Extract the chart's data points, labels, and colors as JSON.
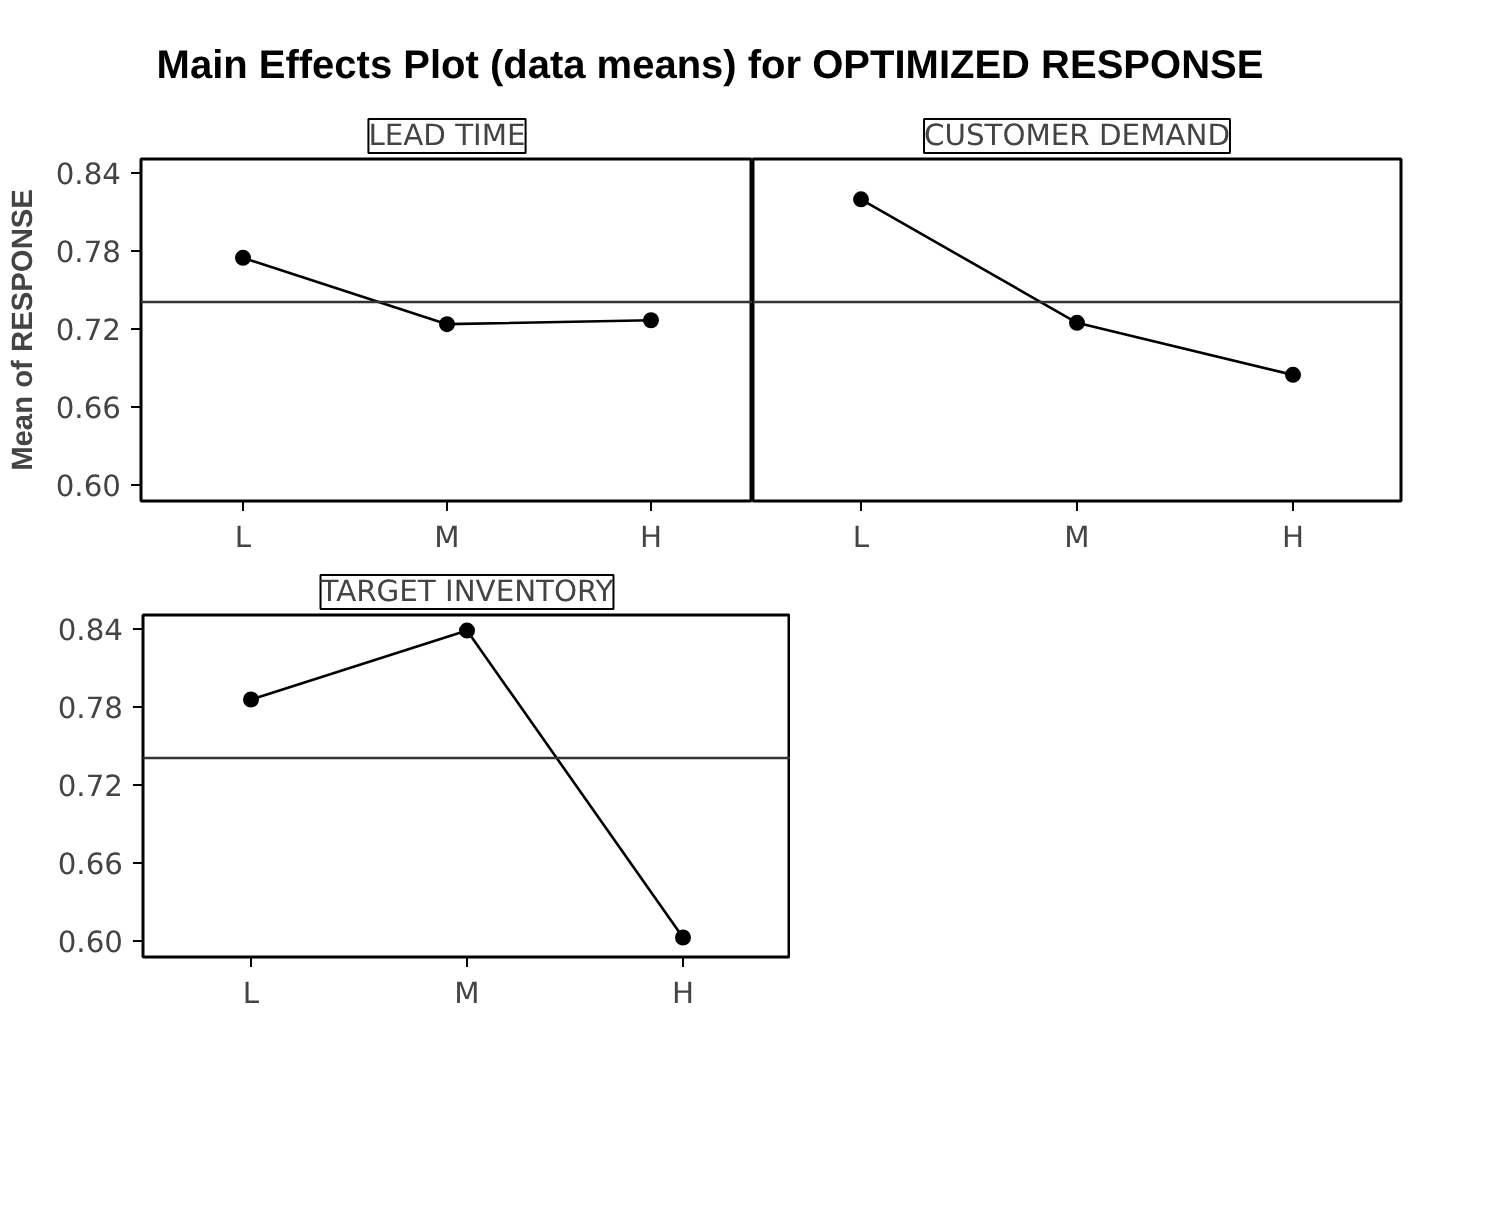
{
  "chart_data": [
    {
      "type": "line",
      "title": "Main Effects Plot (data means) for OPTIMIZED RESPONSE",
      "subtitle": "LEAD TIME",
      "ylabel": "Mean of RESPONSE",
      "categories": [
        "L",
        "M",
        "H"
      ],
      "values": [
        0.775,
        0.724,
        0.727
      ],
      "color": "#000000",
      "marker": "circle",
      "ylim": [
        0.588,
        0.851
      ],
      "yticks": [
        {
          "value": 0.6,
          "label": "0.60"
        },
        0.66,
        0.72,
        0.78,
        0.84
      ],
      "ref_lines": [
        {
          "axis": "y",
          "value": 0.741,
          "color": "#333333"
        }
      ],
      "grid": false
    },
    {
      "type": "line",
      "subtitle": "CUSTOMER DEMAND",
      "categories": [
        "L",
        "M",
        "H"
      ],
      "values": [
        0.82,
        0.725,
        0.685
      ],
      "color": "#000000",
      "marker": "circle",
      "ylim": [
        0.588,
        0.851
      ],
      "tick_labels": "x",
      "ref_lines": [
        {
          "axis": "y",
          "value": 0.741,
          "color": "#333333"
        }
      ],
      "grid": false
    },
    {
      "type": "line",
      "subtitle": "TARGET INVENTORY",
      "categories": [
        "L",
        "M",
        "H"
      ],
      "values": [
        0.786,
        0.839,
        0.603
      ],
      "color": "#000000",
      "marker": "circle",
      "ylim": [
        0.588,
        0.851
      ],
      "yticks": [
        {
          "value": 0.6,
          "label": "0.60"
        },
        0.66,
        0.72,
        0.78,
        0.84
      ],
      "ref_lines": [
        {
          "axis": "y",
          "value": 0.741,
          "color": "#333333"
        }
      ],
      "grid": false
    }
  ]
}
